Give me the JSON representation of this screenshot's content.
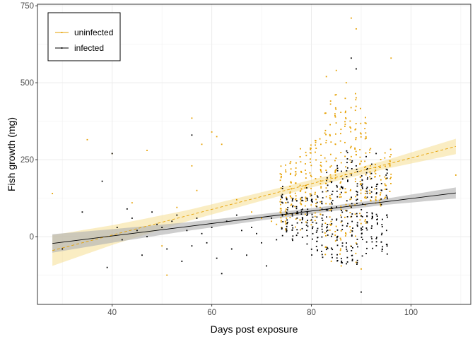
{
  "chart_data": {
    "type": "scatter",
    "xlabel": "Days post exposure",
    "ylabel": "Fish growth (mg)",
    "xlim": [
      25,
      112
    ],
    "ylim": [
      -220,
      755
    ],
    "x_ticks": [
      40,
      60,
      80,
      100
    ],
    "y_ticks": [
      0,
      250,
      500,
      750
    ],
    "x_tick_labels": [
      "40",
      "60",
      "80",
      "100"
    ],
    "y_tick_labels": [
      "0",
      "250",
      "500",
      "750"
    ],
    "grid": true,
    "legend_position": "top-left",
    "series": [
      {
        "name": "uninfected",
        "color": "#e6a000",
        "band_color": "#f3d77a",
        "line_style": "dashed",
        "fit": {
          "x": [
            28,
            109
          ],
          "y": [
            -45,
            293
          ]
        },
        "band_halfwidth": {
          "x": [
            28,
            40,
            55,
            70,
            85,
            95,
            109
          ],
          "y": [
            50,
            32,
            18,
            14,
            12,
            14,
            25
          ]
        },
        "points": [
          [
            28,
            140
          ],
          [
            35,
            315
          ],
          [
            40,
            270
          ],
          [
            44,
            110
          ],
          [
            47,
            280
          ],
          [
            50,
            -30
          ],
          [
            51,
            -125
          ],
          [
            53,
            95
          ],
          [
            56,
            385
          ],
          [
            56,
            230
          ],
          [
            57,
            150
          ],
          [
            58,
            300
          ],
          [
            60,
            340
          ],
          [
            61,
            325
          ],
          [
            62,
            300
          ],
          [
            65,
            120
          ],
          [
            68,
            80
          ],
          [
            70,
            60
          ],
          [
            72,
            50
          ],
          [
            73,
            40
          ],
          [
            74,
            30
          ],
          [
            75,
            60
          ],
          [
            76,
            105
          ],
          [
            78,
            155
          ],
          [
            80,
            195
          ],
          [
            82,
            210
          ],
          [
            84,
            230
          ],
          [
            86,
            240
          ],
          [
            88,
            260
          ],
          [
            90,
            245
          ],
          [
            96,
            580
          ],
          [
            88,
            710
          ],
          [
            89,
            675
          ],
          [
            85,
            540
          ],
          [
            83,
            520
          ],
          [
            87,
            500
          ],
          [
            84,
            -80
          ],
          [
            86,
            -95
          ],
          [
            90,
            -105
          ],
          [
            109,
            200
          ]
        ],
        "clusters": [
          {
            "x": 74,
            "y_min": 10,
            "y_max": 230,
            "n": 18
          },
          {
            "x": 75,
            "y_min": 20,
            "y_max": 245,
            "n": 18
          },
          {
            "x": 76,
            "y_min": 0,
            "y_max": 255,
            "n": 18
          },
          {
            "x": 77,
            "y_min": 30,
            "y_max": 240,
            "n": 16
          },
          {
            "x": 78,
            "y_min": 20,
            "y_max": 290,
            "n": 18
          },
          {
            "x": 79,
            "y_min": 40,
            "y_max": 280,
            "n": 16
          },
          {
            "x": 80,
            "y_min": 30,
            "y_max": 300,
            "n": 18
          },
          {
            "x": 81,
            "y_min": 40,
            "y_max": 340,
            "n": 16
          },
          {
            "x": 82,
            "y_min": 40,
            "y_max": 320,
            "n": 18
          },
          {
            "x": 83,
            "y_min": -60,
            "y_max": 410,
            "n": 22
          },
          {
            "x": 84,
            "y_min": 0,
            "y_max": 470,
            "n": 24
          },
          {
            "x": 85,
            "y_min": -30,
            "y_max": 480,
            "n": 24
          },
          {
            "x": 86,
            "y_min": -60,
            "y_max": 440,
            "n": 22
          },
          {
            "x": 87,
            "y_min": 0,
            "y_max": 460,
            "n": 22
          },
          {
            "x": 88,
            "y_min": -40,
            "y_max": 420,
            "n": 22
          },
          {
            "x": 89,
            "y_min": -90,
            "y_max": 470,
            "n": 24
          },
          {
            "x": 90,
            "y_min": 20,
            "y_max": 430,
            "n": 22
          },
          {
            "x": 91,
            "y_min": 40,
            "y_max": 430,
            "n": 22
          },
          {
            "x": 92,
            "y_min": 80,
            "y_max": 300,
            "n": 14
          },
          {
            "x": 93,
            "y_min": 100,
            "y_max": 260,
            "n": 12
          },
          {
            "x": 94,
            "y_min": 100,
            "y_max": 270,
            "n": 12
          },
          {
            "x": 95,
            "y_min": 120,
            "y_max": 290,
            "n": 12
          },
          {
            "x": 96,
            "y_min": 140,
            "y_max": 300,
            "n": 12
          }
        ]
      },
      {
        "name": "infected",
        "color": "#000000",
        "band_color": "#b3b3b3",
        "line_style": "solid",
        "fit": {
          "x": [
            28,
            109
          ],
          "y": [
            -22,
            142
          ]
        },
        "band_halfwidth": {
          "x": [
            28,
            40,
            55,
            70,
            85,
            95,
            109
          ],
          "y": [
            30,
            22,
            14,
            10,
            9,
            10,
            18
          ]
        },
        "points": [
          [
            30,
            -40
          ],
          [
            34,
            80
          ],
          [
            38,
            180
          ],
          [
            39,
            -100
          ],
          [
            40,
            270
          ],
          [
            41,
            30
          ],
          [
            42,
            -10
          ],
          [
            43,
            90
          ],
          [
            44,
            60
          ],
          [
            45,
            20
          ],
          [
            46,
            -60
          ],
          [
            47,
            0
          ],
          [
            48,
            80
          ],
          [
            49,
            40
          ],
          [
            50,
            30
          ],
          [
            51,
            -40
          ],
          [
            52,
            50
          ],
          [
            53,
            70
          ],
          [
            54,
            -80
          ],
          [
            55,
            20
          ],
          [
            56,
            330
          ],
          [
            56,
            -30
          ],
          [
            57,
            60
          ],
          [
            58,
            10
          ],
          [
            59,
            -20
          ],
          [
            60,
            30
          ],
          [
            61,
            -70
          ],
          [
            62,
            -120
          ],
          [
            63,
            50
          ],
          [
            64,
            -40
          ],
          [
            65,
            70
          ],
          [
            66,
            20
          ],
          [
            67,
            -60
          ],
          [
            68,
            30
          ],
          [
            69,
            10
          ],
          [
            70,
            -20
          ],
          [
            71,
            -95
          ],
          [
            72,
            60
          ],
          [
            73,
            -10
          ],
          [
            88,
            580
          ],
          [
            89,
            545
          ],
          [
            89,
            230
          ],
          [
            90,
            -180
          ],
          [
            91,
            260
          ],
          [
            93,
            270
          ],
          [
            95,
            200
          ]
        ],
        "clusters": [
          {
            "x": 74,
            "y_min": 0,
            "y_max": 170,
            "n": 14
          },
          {
            "x": 75,
            "y_min": 10,
            "y_max": 140,
            "n": 14
          },
          {
            "x": 76,
            "y_min": -20,
            "y_max": 130,
            "n": 14
          },
          {
            "x": 77,
            "y_min": 0,
            "y_max": 120,
            "n": 14
          },
          {
            "x": 78,
            "y_min": -10,
            "y_max": 140,
            "n": 14
          },
          {
            "x": 79,
            "y_min": -40,
            "y_max": 170,
            "n": 16
          },
          {
            "x": 80,
            "y_min": -60,
            "y_max": 150,
            "n": 16
          },
          {
            "x": 81,
            "y_min": -60,
            "y_max": 140,
            "n": 16
          },
          {
            "x": 82,
            "y_min": -80,
            "y_max": 180,
            "n": 18
          },
          {
            "x": 83,
            "y_min": -60,
            "y_max": 220,
            "n": 18
          },
          {
            "x": 84,
            "y_min": -70,
            "y_max": 200,
            "n": 18
          },
          {
            "x": 85,
            "y_min": -80,
            "y_max": 240,
            "n": 20
          },
          {
            "x": 86,
            "y_min": -90,
            "y_max": 230,
            "n": 20
          },
          {
            "x": 87,
            "y_min": -100,
            "y_max": 280,
            "n": 22
          },
          {
            "x": 88,
            "y_min": -100,
            "y_max": 260,
            "n": 22
          },
          {
            "x": 89,
            "y_min": -90,
            "y_max": 250,
            "n": 22
          },
          {
            "x": 90,
            "y_min": -70,
            "y_max": 240,
            "n": 20
          },
          {
            "x": 91,
            "y_min": -60,
            "y_max": 250,
            "n": 20
          },
          {
            "x": 92,
            "y_min": -40,
            "y_max": 260,
            "n": 18
          },
          {
            "x": 93,
            "y_min": -30,
            "y_max": 200,
            "n": 16
          },
          {
            "x": 94,
            "y_min": -50,
            "y_max": 180,
            "n": 16
          },
          {
            "x": 95,
            "y_min": -60,
            "y_max": 220,
            "n": 16
          }
        ]
      }
    ]
  }
}
